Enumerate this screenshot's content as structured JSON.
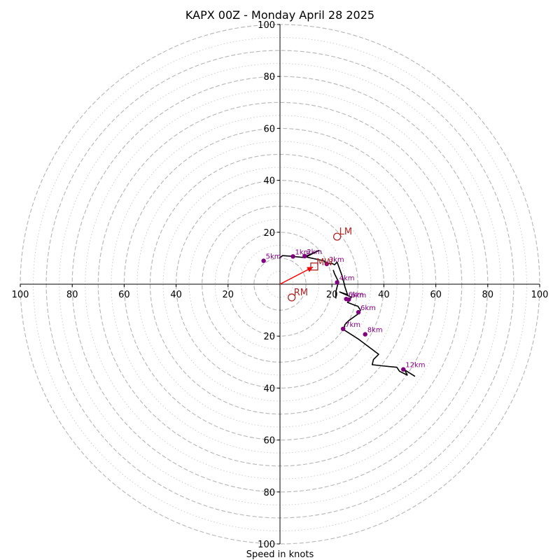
{
  "chart_data": {
    "type": "hodograph",
    "title": "KAPX 00Z - Monday April 28 2025",
    "xlabel": "Speed in knots",
    "xlim": [
      -100,
      100
    ],
    "ylim": [
      -100,
      100
    ],
    "tick_values": [
      20,
      40,
      60,
      80,
      100
    ],
    "rings_dashed": [
      10,
      20,
      30,
      40,
      50,
      60,
      70,
      80,
      90,
      100
    ],
    "rings_dotted": [
      5,
      15,
      25,
      35,
      45,
      55,
      65,
      75,
      85,
      95
    ],
    "grid": true,
    "hodograph_line": [
      [
        -0.3,
        10.0
      ],
      [
        1.0,
        11.0
      ],
      [
        4.0,
        10.8
      ],
      [
        9.0,
        10.3
      ],
      [
        15.0,
        13.0
      ],
      [
        10.0,
        10.5
      ],
      [
        17.0,
        9.0
      ],
      [
        17.5,
        8.0
      ],
      [
        20.0,
        8.0
      ],
      [
        21.0,
        7.5
      ],
      [
        22.0,
        8.5
      ],
      [
        24.0,
        3.0
      ],
      [
        25.0,
        -1.0
      ],
      [
        26.0,
        -4.0
      ],
      [
        23.0,
        -3.0
      ],
      [
        27.5,
        -5.0
      ],
      [
        26.0,
        -7.0
      ],
      [
        28.5,
        -8.0
      ],
      [
        30.0,
        -8.5
      ],
      [
        31.0,
        -10.0
      ],
      [
        30.0,
        -11.5
      ],
      [
        26.5,
        -14.0
      ],
      [
        25.0,
        -15.5
      ],
      [
        24.5,
        -17.5
      ],
      [
        30.0,
        -21.0
      ],
      [
        34.0,
        -24.0
      ],
      [
        38.0,
        -27.0
      ],
      [
        36.0,
        -29.0
      ],
      [
        35.5,
        -31.0
      ],
      [
        40.0,
        -31.5
      ],
      [
        45.0,
        -32.0
      ],
      [
        46.0,
        -33.5
      ],
      [
        49.0,
        -35.0
      ],
      [
        48.0,
        -33.0
      ],
      [
        52.0,
        -35.5
      ]
    ],
    "lower_segment": [
      [
        20.5,
        5.5
      ],
      [
        21.0,
        4.0
      ],
      [
        22.5,
        1.0
      ],
      [
        21.5,
        -3.0
      ],
      [
        21.5,
        -5.5
      ]
    ],
    "height_markers": [
      {
        "label": "1km",
        "u": 5.0,
        "v": 10.7
      },
      {
        "label": "2km",
        "u": 9.5,
        "v": 10.8
      },
      {
        "label": "3km",
        "u": 18.0,
        "v": 7.8
      },
      {
        "label": "4km",
        "u": 22.0,
        "v": 0.7
      },
      {
        "label": "5km",
        "u": -6.3,
        "v": 9.0
      },
      {
        "label": "6km",
        "u": 25.5,
        "v": -5.7
      },
      {
        "label": "6km",
        "u": 26.5,
        "v": -5.9
      },
      {
        "label": "6km",
        "u": 30.2,
        "v": -10.8
      },
      {
        "label": "7km",
        "u": 24.3,
        "v": -17.2
      },
      {
        "label": "8km",
        "u": 32.8,
        "v": -19.3
      },
      {
        "label": "12km",
        "u": 47.5,
        "v": -32.8
      }
    ],
    "storm_motion": [
      {
        "label": "LM",
        "u": 22.0,
        "v": 18.3
      },
      {
        "label": "RM",
        "u": 4.5,
        "v": -5.1
      }
    ],
    "mean_wind": {
      "label": "MW",
      "u": 13.2,
      "v": 6.8
    },
    "shear_vector": {
      "u": 12.7,
      "v": 6.6
    },
    "colors": {
      "hodograph": "#000000",
      "markers": "#800080",
      "storm_motion": "#b22222",
      "shear_arrow": "#ff0000",
      "ring_dashed": "#bbbbbb",
      "ring_dotted": "#cccccc"
    }
  }
}
